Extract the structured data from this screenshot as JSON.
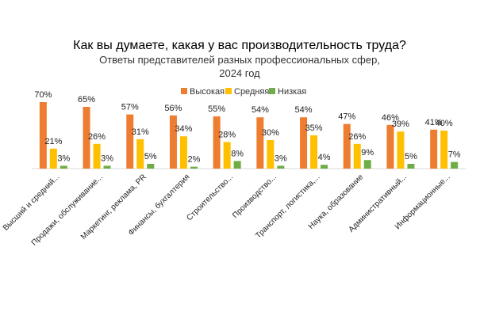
{
  "chart_data": {
    "type": "bar",
    "title": "Как вы думаете, какая  у вас производительность труда?",
    "subtitle_lines": [
      "Ответы представителей  разных  профессиональных  сфер,",
      "2024 год"
    ],
    "categories": [
      "Высший и средний...",
      "Продажи, обслуживание...",
      "Маркетинг, реклама, PR",
      "Финансы, бухгалтерия",
      "Строительство...",
      "Производство...",
      "Транспорт, логистика,...",
      "Наука, образование",
      "Административный...",
      "Информационные..."
    ],
    "series": [
      {
        "name": "Высокая",
        "color": "#ED7D31",
        "values": [
          70,
          65,
          57,
          56,
          55,
          54,
          54,
          47,
          46,
          41
        ]
      },
      {
        "name": "Средняя",
        "color": "#FFC000",
        "values": [
          21,
          26,
          31,
          34,
          28,
          30,
          35,
          26,
          39,
          40
        ]
      },
      {
        "name": "Низкая",
        "color": "#70AD47",
        "values": [
          3,
          3,
          5,
          2,
          8,
          3,
          4,
          9,
          5,
          7
        ]
      }
    ],
    "value_suffix": "%",
    "ylim": [
      0,
      100
    ],
    "grid": false,
    "legend_position": "top-center",
    "axis_color": "#d9d9d9"
  }
}
